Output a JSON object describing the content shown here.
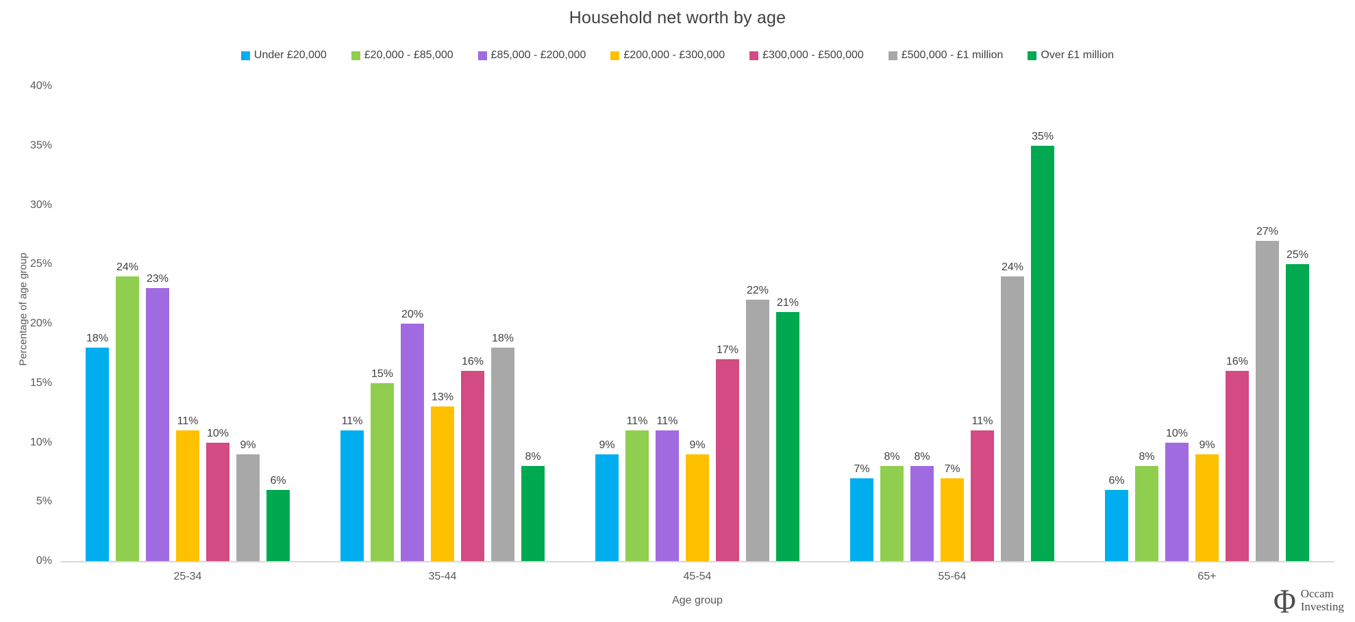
{
  "title": "Household net worth by age",
  "chart_data": {
    "type": "bar",
    "title": "Household net worth by age",
    "xlabel": "Age group",
    "ylabel": "Percentage of age group",
    "ylim": [
      0,
      40
    ],
    "y_tick_step": 5,
    "y_ticks": [
      "0%",
      "5%",
      "10%",
      "15%",
      "20%",
      "25%",
      "30%",
      "35%",
      "40%"
    ],
    "grid": false,
    "legend_position": "top-center",
    "data_labels": true,
    "data_label_suffix": "%",
    "categories": [
      "25-34",
      "35-44",
      "45-54",
      "55-64",
      "65+"
    ],
    "series": [
      {
        "name": "Under £20,000",
        "color": "#00AEEF",
        "textured": false,
        "values": [
          18,
          11,
          9,
          7,
          6
        ]
      },
      {
        "name": "£20,000 - £85,000",
        "color": "#90CE4F",
        "textured": false,
        "values": [
          24,
          15,
          11,
          8,
          8
        ]
      },
      {
        "name": "£85,000 - £200,000",
        "color": "#A06BE0",
        "textured": false,
        "values": [
          23,
          20,
          11,
          8,
          10
        ]
      },
      {
        "name": "£200,000 - £300,000",
        "color": "#FFC000",
        "textured": false,
        "values": [
          11,
          13,
          9,
          7,
          9
        ]
      },
      {
        "name": "£300,000 - £500,000",
        "color": "#D44A82",
        "textured": false,
        "values": [
          10,
          16,
          17,
          11,
          16
        ]
      },
      {
        "name": "£500,000 - £1 million",
        "color": "#A8A8A8",
        "textured": true,
        "values": [
          9,
          18,
          22,
          24,
          27
        ]
      },
      {
        "name": "Over £1 million",
        "color": "#00A950",
        "textured": false,
        "values": [
          6,
          8,
          21,
          35,
          25
        ]
      }
    ]
  },
  "colors": {
    "axis_line": "#D9D9D9",
    "title_text": "#404040",
    "tick_text": "#595959",
    "data_label_text": "#404040",
    "legend_text": "#404040"
  },
  "branding": {
    "logo_glyph": "Φ",
    "name_line1": "Occam",
    "name_line2": "Investing"
  }
}
